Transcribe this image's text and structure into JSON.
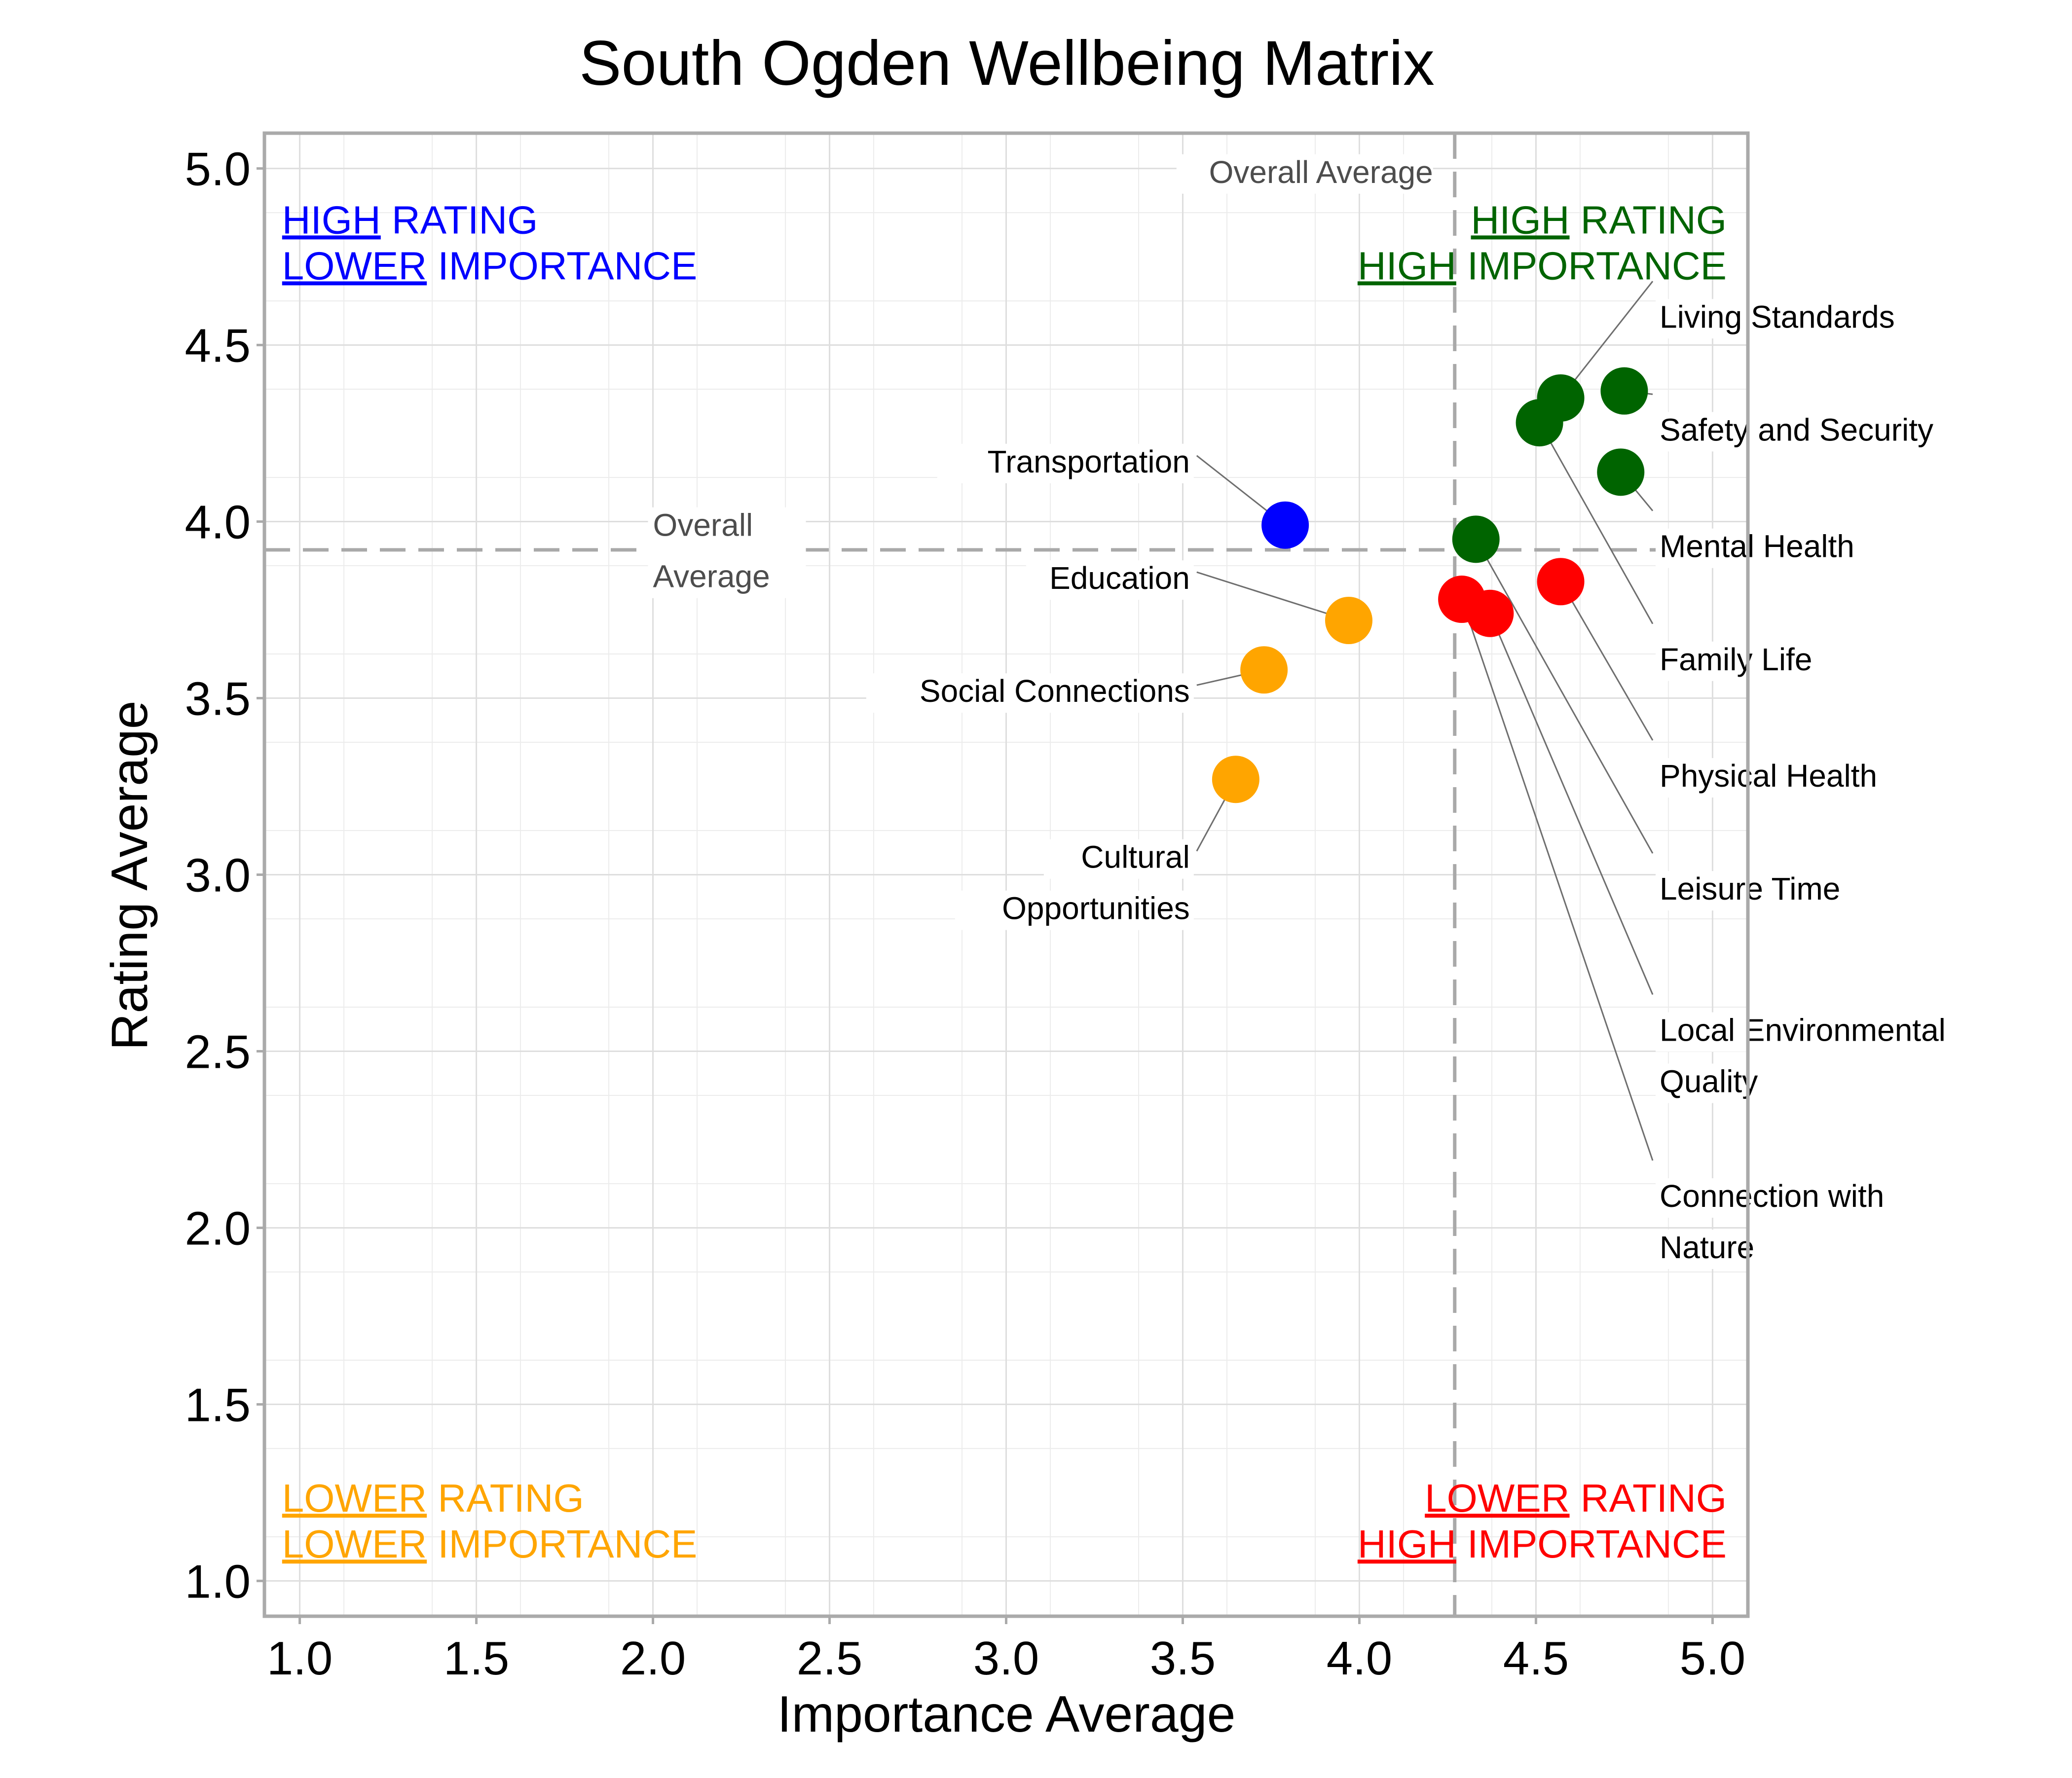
{
  "chart_data": {
    "type": "scatter",
    "title": "South Ogden Wellbeing Matrix",
    "xlabel": "Importance Average",
    "ylabel": "Rating Average",
    "xlim": [
      0.9,
      5.1
    ],
    "ylim": [
      0.9,
      5.1
    ],
    "x_ticks": [
      "1.0",
      "1.5",
      "2.0",
      "2.5",
      "3.0",
      "3.5",
      "4.0",
      "4.5",
      "5.0"
    ],
    "y_ticks": [
      "1.0",
      "1.5",
      "2.0",
      "2.5",
      "3.0",
      "3.5",
      "4.0",
      "4.5",
      "5.0"
    ],
    "grid": true,
    "reference_lines": {
      "x_overall_average": 4.27,
      "y_overall_average": 3.92,
      "x_label": "Overall Average",
      "y_label_lines": [
        "Overall",
        "Average"
      ]
    },
    "colors": {
      "high_rating_high_importance": "#006400",
      "high_rating_lower_importance": "#0000ff",
      "lower_rating_lower_importance": "#ffa500",
      "lower_rating_high_importance": "#ff0000"
    },
    "quadrant_labels": {
      "top_left": {
        "line1": [
          "HIGH",
          " RATING"
        ],
        "line2": [
          "LOWER",
          " IMPORTANCE"
        ],
        "color_key": "high_rating_lower_importance"
      },
      "top_right": {
        "line1": [
          "HIGH",
          " RATING"
        ],
        "line2": [
          "HIGH",
          " IMPORTANCE"
        ],
        "color_key": "high_rating_high_importance"
      },
      "bottom_left": {
        "line1": [
          "LOWER",
          " RATING"
        ],
        "line2": [
          "LOWER",
          " IMPORTANCE"
        ],
        "color_key": "lower_rating_lower_importance"
      },
      "bottom_right": {
        "line1": [
          "LOWER",
          " RATING"
        ],
        "line2": [
          "HIGH",
          " IMPORTANCE"
        ],
        "color_key": "lower_rating_high_importance"
      }
    },
    "points": [
      {
        "label": [
          "Living Standards"
        ],
        "x": 4.57,
        "y": 4.35,
        "color_key": "high_rating_high_importance",
        "label_side": "right",
        "label_y": 4.58
      },
      {
        "label": [
          "Safety and Security"
        ],
        "x": 4.75,
        "y": 4.37,
        "color_key": "high_rating_high_importance",
        "label_side": "right",
        "label_y": 4.26
      },
      {
        "label": [
          "Mental Health"
        ],
        "x": 4.74,
        "y": 4.14,
        "color_key": "high_rating_high_importance",
        "label_side": "right",
        "label_y": 3.93
      },
      {
        "label": [
          "Family Life"
        ],
        "x": 4.51,
        "y": 4.28,
        "color_key": "high_rating_high_importance",
        "label_side": "right",
        "label_y": 3.61
      },
      {
        "label": [
          "Physical Health"
        ],
        "x": 4.57,
        "y": 3.83,
        "color_key": "lower_rating_high_importance",
        "label_side": "right",
        "label_y": 3.28
      },
      {
        "label": [
          "Leisure Time"
        ],
        "x": 4.33,
        "y": 3.95,
        "color_key": "high_rating_high_importance",
        "label_side": "right",
        "label_y": 2.96
      },
      {
        "label": [
          "Local Environmental",
          "Quality"
        ],
        "x": 4.37,
        "y": 3.74,
        "color_key": "lower_rating_high_importance",
        "label_side": "right",
        "label_y": 2.56
      },
      {
        "label": [
          "Connection with",
          "Nature"
        ],
        "x": 4.29,
        "y": 3.78,
        "color_key": "lower_rating_high_importance",
        "label_side": "right",
        "label_y": 2.09
      },
      {
        "label": [
          "Transportation"
        ],
        "x": 3.79,
        "y": 3.99,
        "color_key": "high_rating_lower_importance",
        "label_side": "left",
        "label_y": 4.17
      },
      {
        "label": [
          "Education"
        ],
        "x": 3.97,
        "y": 3.72,
        "color_key": "lower_rating_lower_importance",
        "label_side": "left",
        "label_y": 3.84
      },
      {
        "label": [
          "Social Connections"
        ],
        "x": 3.73,
        "y": 3.58,
        "color_key": "lower_rating_lower_importance",
        "label_side": "left",
        "label_y": 3.52
      },
      {
        "label": [
          "Cultural",
          "Opportunities"
        ],
        "x": 3.65,
        "y": 3.27,
        "color_key": "lower_rating_lower_importance",
        "label_side": "left",
        "label_y": 3.05
      }
    ]
  }
}
